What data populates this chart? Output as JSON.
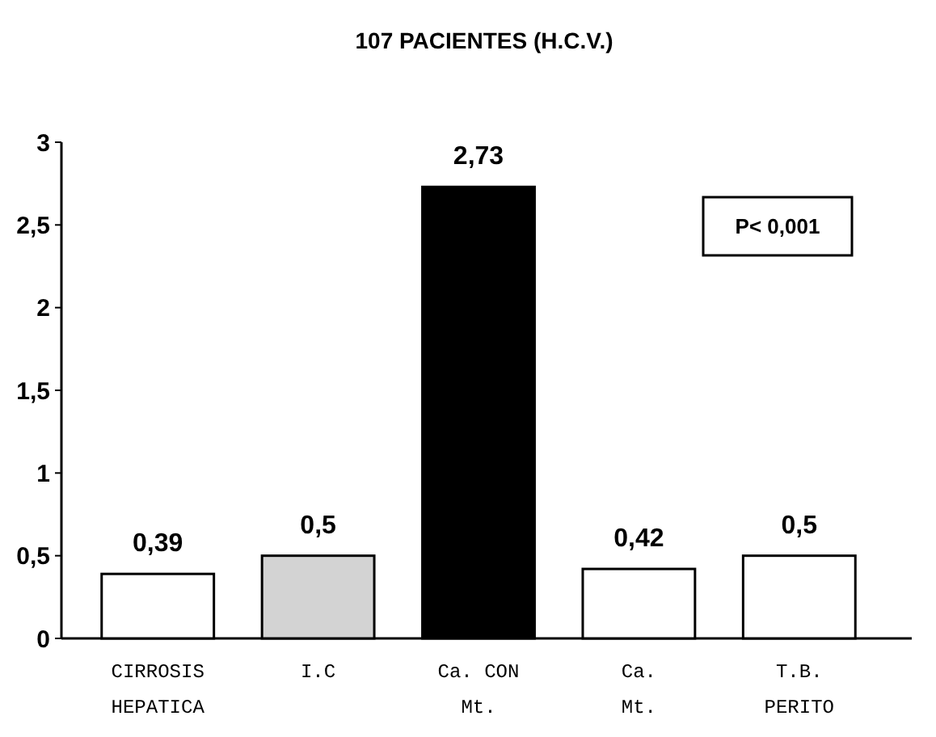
{
  "chart_data": {
    "type": "bar",
    "title": "107 PACIENTES (H.C.V.)",
    "categories": [
      "CIRROSIS\nHEPATICA",
      "I.C",
      "Ca. CON\nMt.",
      "Ca.\nMt.",
      "T.B.\nPERITO"
    ],
    "values": [
      0.39,
      0.5,
      2.73,
      0.42,
      0.5
    ],
    "colors": [
      "#ffffff",
      "#d3d3d3",
      "#000000",
      "#ffffff",
      "#ffffff"
    ],
    "value_labels": [
      "0,39",
      "0,5",
      "2,73",
      "0,42",
      "0,5"
    ],
    "ylim": [
      0,
      3
    ],
    "yticks": [
      0,
      {
        "value": 0.5,
        "label": "0,5"
      },
      1,
      {
        "value": 1.5,
        "label": "1,5"
      },
      2,
      {
        "value": 2.5,
        "label": "2,5"
      },
      3
    ],
    "annotations": [
      "P< 0,001"
    ]
  }
}
